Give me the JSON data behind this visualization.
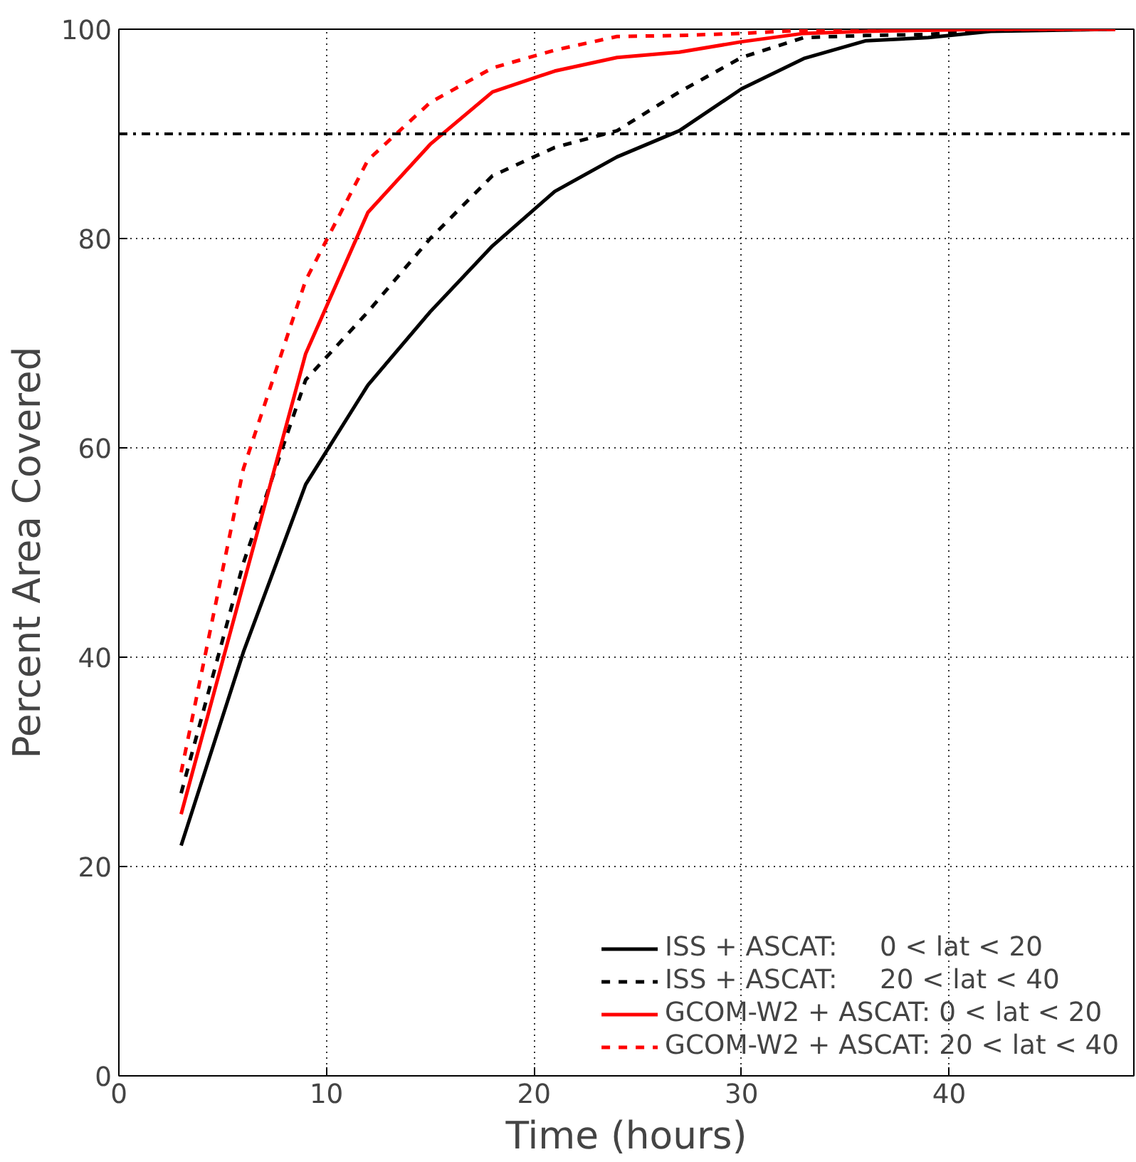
{
  "chart_data": {
    "type": "line",
    "xlabel": "Time (hours)",
    "ylabel": "Percent Area Covered",
    "x": [
      3,
      6,
      9,
      12,
      15,
      18,
      21,
      24,
      27,
      30,
      33,
      36,
      39,
      42,
      45,
      48
    ],
    "xlim": [
      0,
      48.9
    ],
    "xticks": [
      0,
      10,
      20,
      30,
      40
    ],
    "ylim": [
      0,
      100
    ],
    "yticks": [
      0,
      20,
      40,
      60,
      80,
      100
    ],
    "grid": true,
    "legend": "bottom right",
    "marker": "none",
    "ref_lines": [
      {
        "axis": "y",
        "value": 90,
        "color": "#000000",
        "line_style": "dashdot"
      }
    ],
    "series": [
      {
        "name": "ISS + ASCAT:     0 < lat < 20",
        "color": "#000000",
        "line_style": "solid",
        "values": [
          22,
          40.5,
          56.5,
          66,
          73,
          79.3,
          84.5,
          87.8,
          90.3,
          94.3,
          97.2,
          98.9,
          99.2,
          99.8,
          99.9,
          100
        ]
      },
      {
        "name": "ISS + ASCAT:     20 < lat < 40",
        "color": "#000000",
        "line_style": "dashed",
        "values": [
          27,
          49,
          66.5,
          73,
          80,
          86,
          88.7,
          90.3,
          94,
          97.3,
          99.2,
          99.4,
          99.5,
          99.9,
          100,
          100
        ]
      },
      {
        "name": "GCOM-W2 + ASCAT: 0 < lat < 20",
        "color": "#ff0000",
        "line_style": "solid",
        "values": [
          25,
          47,
          69,
          82.5,
          89,
          94,
          96,
          97.3,
          97.8,
          98.8,
          99.6,
          99.8,
          99.9,
          100,
          100,
          100
        ]
      },
      {
        "name": "GCOM-W2 + ASCAT: 20 < lat < 40",
        "color": "#ff0000",
        "line_style": "dashed",
        "values": [
          29,
          58,
          76,
          87.5,
          93,
          96.3,
          98,
          99.3,
          99.4,
          99.6,
          99.9,
          100,
          100,
          100,
          100,
          100
        ]
      }
    ]
  }
}
